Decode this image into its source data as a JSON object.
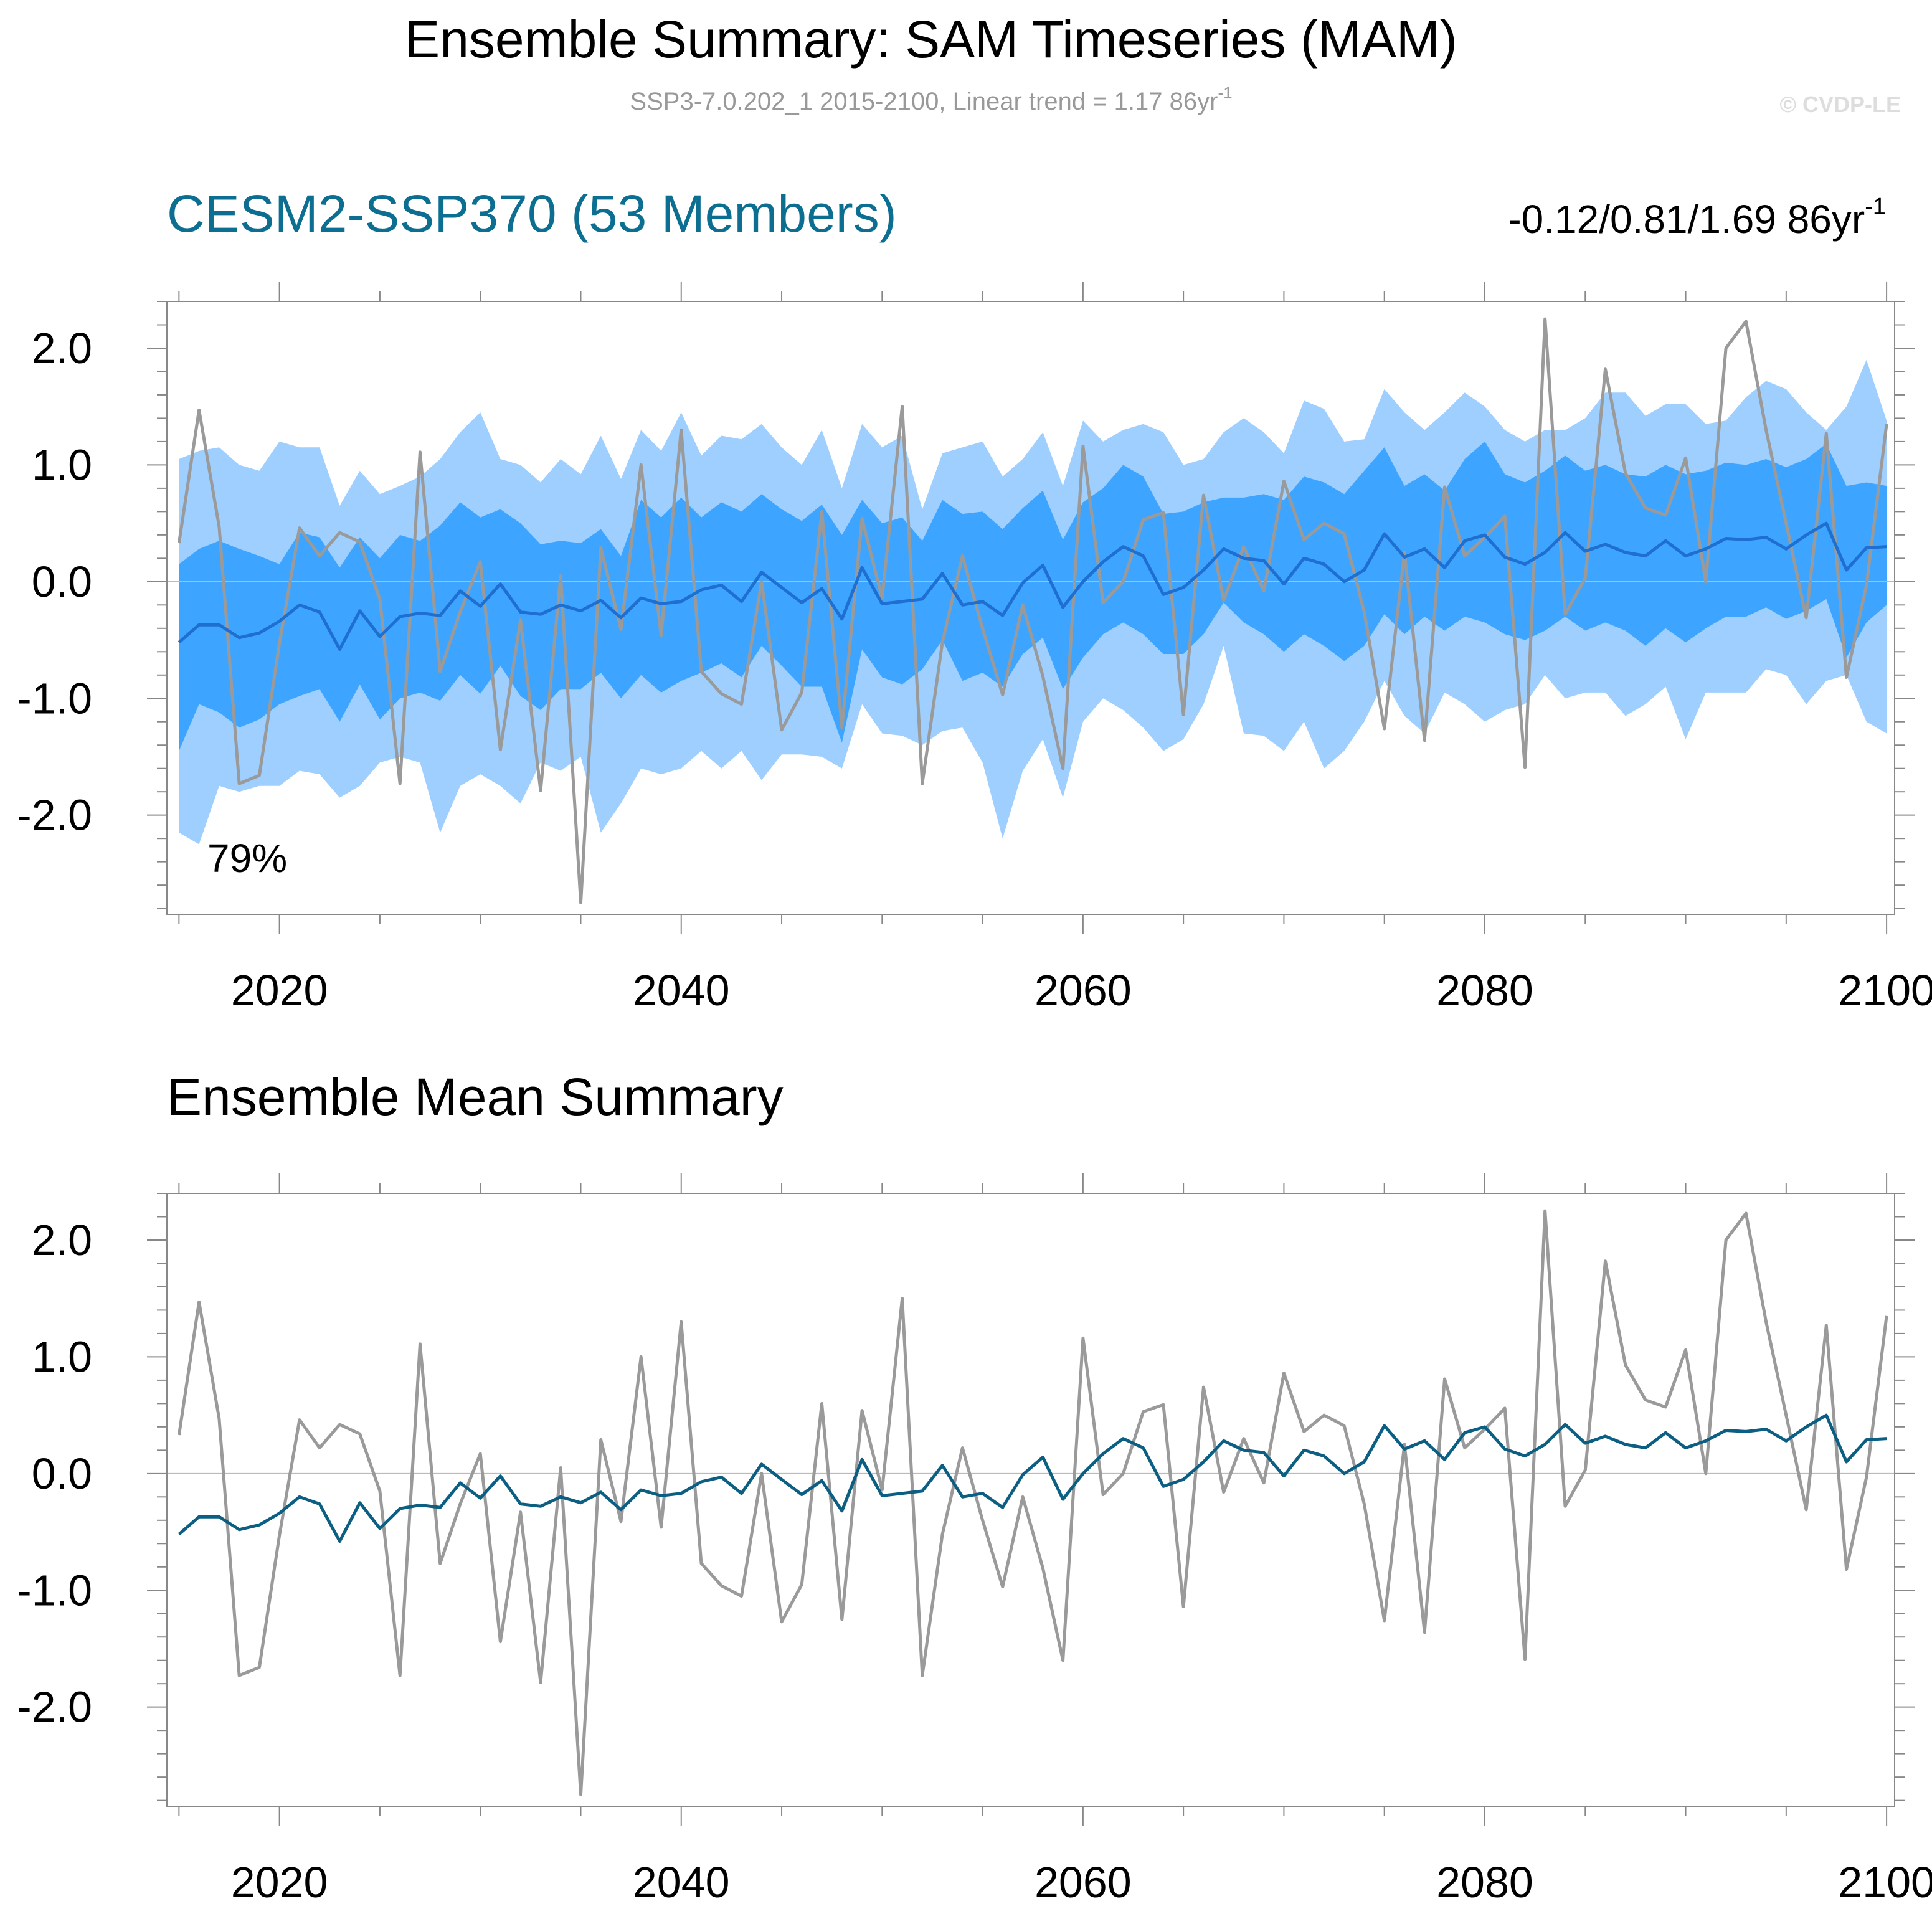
{
  "header": {
    "title": "Ensemble Summary: SAM Timeseries (MAM)",
    "subtitle_main": "SSP3-7.0.202_1 2015-2100, Linear trend = 1.17 86yr",
    "subtitle_sup": "-1",
    "watermark": "© CVDP-LE"
  },
  "panels": [
    {
      "title": "CESM2-SSP370 (53 Members)",
      "trend_text": "-0.12/0.81/1.69 86yr",
      "trend_sup": "-1",
      "annotation": "79%"
    },
    {
      "title": "Ensemble Mean Summary"
    }
  ],
  "colors": {
    "outer_band": "#9ecfff",
    "inner_band": "#3da5ff",
    "panel1_mean": "#1e6fcf",
    "panel2_mean": "#0c5f82",
    "observed": "#9a9a9a",
    "zero_line": "#bbbbbb",
    "title_blue": "#0c6e91",
    "subtitle_gray": "#999999",
    "watermark_gray": "#dddddd"
  },
  "chart_data": [
    {
      "type": "line",
      "x_start": 2015,
      "x_end": 2100,
      "xlim": [
        2014.4,
        2100.4
      ],
      "ylim": [
        -2.85,
        2.4
      ],
      "xticks": [
        "2020",
        "2040",
        "2060",
        "2080",
        "2100"
      ],
      "yticks": [
        "2.0",
        "1.0",
        "0.0",
        "-1.0",
        "-2.0"
      ],
      "series": [
        {
          "role": "observed",
          "values": [
            0.33,
            1.47,
            0.47,
            -1.73,
            -1.66,
            -0.53,
            0.46,
            0.22,
            0.42,
            0.34,
            -0.15,
            -1.73,
            1.11,
            -0.77,
            -0.26,
            0.17,
            -1.44,
            -0.33,
            -1.79,
            0.05,
            -2.75,
            0.29,
            -0.41,
            1.0,
            -0.46,
            1.3,
            -0.77,
            -0.96,
            -1.05,
            0.0,
            -1.27,
            -0.95,
            0.6,
            -1.25,
            0.54,
            -0.14,
            1.5,
            -1.73,
            -0.52,
            0.22,
            -0.4,
            -0.97,
            -0.2,
            -0.81,
            -1.6,
            1.16,
            -0.18,
            0.0,
            0.53,
            0.59,
            -1.14,
            0.74,
            -0.16,
            0.3,
            -0.08,
            0.86,
            0.36,
            0.5,
            0.41,
            -0.26,
            -1.26,
            0.25,
            -1.36,
            0.81,
            0.22,
            0.38,
            0.56,
            -1.59,
            2.25,
            -0.28,
            0.03,
            1.82,
            0.93,
            0.63,
            0.57,
            1.06,
            0.0,
            2.0,
            2.23,
            1.3,
            0.5,
            -0.31,
            1.27,
            -0.82,
            -0.03,
            1.35
          ]
        },
        {
          "role": "ensemble-mean",
          "values": [
            -0.52,
            -0.37,
            -0.37,
            -0.48,
            -0.44,
            -0.34,
            -0.2,
            -0.26,
            -0.58,
            -0.25,
            -0.47,
            -0.3,
            -0.27,
            -0.29,
            -0.08,
            -0.21,
            -0.02,
            -0.26,
            -0.28,
            -0.2,
            -0.25,
            -0.16,
            -0.31,
            -0.14,
            -0.19,
            -0.17,
            -0.07,
            -0.03,
            -0.17,
            0.08,
            -0.05,
            -0.18,
            -0.06,
            -0.32,
            0.12,
            -0.19,
            -0.17,
            -0.15,
            0.07,
            -0.2,
            -0.17,
            -0.29,
            -0.01,
            0.14,
            -0.22,
            0.0,
            0.17,
            0.3,
            0.22,
            -0.11,
            -0.05,
            0.1,
            0.28,
            0.2,
            0.18,
            -0.02,
            0.2,
            0.15,
            0.0,
            0.1,
            0.41,
            0.21,
            0.28,
            0.12,
            0.35,
            0.4,
            0.21,
            0.15,
            0.25,
            0.42,
            0.26,
            0.32,
            0.25,
            0.22,
            0.35,
            0.22,
            0.28,
            0.37,
            0.36,
            0.38,
            0.28,
            0.4,
            0.5,
            0.1,
            0.29,
            0.3
          ]
        },
        {
          "role": "inner-band-upper",
          "values": [
            0.15,
            0.28,
            0.35,
            0.28,
            0.22,
            0.15,
            0.42,
            0.38,
            0.12,
            0.38,
            0.2,
            0.4,
            0.35,
            0.48,
            0.68,
            0.55,
            0.62,
            0.5,
            0.32,
            0.35,
            0.33,
            0.45,
            0.22,
            0.7,
            0.55,
            0.72,
            0.55,
            0.68,
            0.6,
            0.75,
            0.62,
            0.52,
            0.66,
            0.4,
            0.7,
            0.5,
            0.55,
            0.35,
            0.7,
            0.58,
            0.6,
            0.45,
            0.63,
            0.78,
            0.36,
            0.68,
            0.8,
            1.0,
            0.9,
            0.58,
            0.6,
            0.68,
            0.72,
            0.72,
            0.75,
            0.7,
            0.9,
            0.85,
            0.75,
            0.95,
            1.15,
            0.82,
            0.92,
            0.78,
            1.05,
            1.2,
            0.92,
            0.85,
            0.95,
            1.08,
            0.95,
            1.0,
            0.92,
            0.9,
            1.0,
            0.92,
            0.95,
            1.02,
            1.0,
            1.05,
            0.98,
            1.05,
            1.18,
            0.82,
            0.85,
            0.82
          ]
        },
        {
          "role": "inner-band-lower",
          "values": [
            -1.45,
            -1.05,
            -1.12,
            -1.25,
            -1.18,
            -1.05,
            -0.98,
            -0.92,
            -1.2,
            -0.88,
            -1.18,
            -1.0,
            -0.95,
            -1.02,
            -0.8,
            -0.96,
            -0.72,
            -0.98,
            -1.1,
            -0.92,
            -0.92,
            -0.78,
            -1.0,
            -0.8,
            -0.95,
            -0.85,
            -0.78,
            -0.7,
            -0.82,
            -0.55,
            -0.72,
            -0.9,
            -0.9,
            -1.38,
            -0.58,
            -0.82,
            -0.88,
            -0.75,
            -0.5,
            -0.85,
            -0.78,
            -0.9,
            -0.62,
            -0.48,
            -0.92,
            -0.65,
            -0.45,
            -0.35,
            -0.45,
            -0.62,
            -0.62,
            -0.45,
            -0.18,
            -0.35,
            -0.45,
            -0.6,
            -0.45,
            -0.55,
            -0.68,
            -0.55,
            -0.28,
            -0.45,
            -0.3,
            -0.42,
            -0.3,
            -0.35,
            -0.45,
            -0.5,
            -0.42,
            -0.3,
            -0.42,
            -0.35,
            -0.42,
            -0.55,
            -0.4,
            -0.52,
            -0.4,
            -0.3,
            -0.3,
            -0.22,
            -0.32,
            -0.25,
            -0.15,
            -0.65,
            -0.35,
            -0.2
          ]
        },
        {
          "role": "outer-band-upper",
          "values": [
            1.05,
            1.12,
            1.15,
            1.0,
            0.95,
            1.2,
            1.15,
            1.15,
            0.65,
            0.95,
            0.75,
            0.82,
            0.9,
            1.05,
            1.28,
            1.45,
            1.05,
            1.0,
            0.85,
            1.05,
            0.92,
            1.25,
            0.88,
            1.3,
            1.12,
            1.45,
            1.08,
            1.25,
            1.22,
            1.35,
            1.15,
            1.0,
            1.3,
            0.8,
            1.35,
            1.15,
            1.25,
            0.62,
            1.1,
            1.15,
            1.2,
            0.9,
            1.05,
            1.28,
            0.82,
            1.38,
            1.2,
            1.3,
            1.35,
            1.28,
            1.0,
            1.05,
            1.28,
            1.4,
            1.28,
            1.1,
            1.55,
            1.48,
            1.2,
            1.22,
            1.65,
            1.45,
            1.3,
            1.45,
            1.62,
            1.5,
            1.3,
            1.2,
            1.3,
            1.3,
            1.4,
            1.62,
            1.62,
            1.42,
            1.52,
            1.52,
            1.35,
            1.38,
            1.58,
            1.72,
            1.65,
            1.45,
            1.3,
            1.5,
            1.9,
            1.38
          ]
        },
        {
          "role": "outer-band-lower",
          "values": [
            -2.15,
            -2.25,
            -1.75,
            -1.8,
            -1.75,
            -1.75,
            -1.62,
            -1.65,
            -1.85,
            -1.75,
            -1.55,
            -1.5,
            -1.55,
            -2.15,
            -1.75,
            -1.65,
            -1.75,
            -1.9,
            -1.55,
            -1.62,
            -1.5,
            -2.15,
            -1.9,
            -1.6,
            -1.65,
            -1.6,
            -1.45,
            -1.6,
            -1.45,
            -1.7,
            -1.48,
            -1.48,
            -1.5,
            -1.6,
            -1.05,
            -1.3,
            -1.32,
            -1.4,
            -1.28,
            -1.25,
            -1.55,
            -2.2,
            -1.62,
            -1.35,
            -1.85,
            -1.2,
            -1.0,
            -1.1,
            -1.25,
            -1.45,
            -1.35,
            -1.05,
            -0.55,
            -1.3,
            -1.32,
            -1.45,
            -1.2,
            -1.6,
            -1.45,
            -1.2,
            -0.85,
            -1.15,
            -1.3,
            -0.95,
            -1.05,
            -1.2,
            -1.1,
            -1.05,
            -0.8,
            -1.0,
            -0.95,
            -0.95,
            -1.15,
            -1.05,
            -0.9,
            -1.35,
            -0.95,
            -0.95,
            -0.95,
            -0.75,
            -0.8,
            -1.05,
            -0.85,
            -0.8,
            -1.2,
            -1.3
          ]
        }
      ]
    },
    {
      "type": "line",
      "x_start": 2015,
      "x_end": 2100,
      "xlim": [
        2014.4,
        2100.4
      ],
      "ylim": [
        -2.85,
        2.4
      ],
      "xticks": [
        "2020",
        "2040",
        "2060",
        "2080",
        "2100"
      ],
      "yticks": [
        "2.0",
        "1.0",
        "0.0",
        "-1.0",
        "-2.0"
      ],
      "series": [
        {
          "role": "observed",
          "values": [
            0.33,
            1.47,
            0.47,
            -1.73,
            -1.66,
            -0.53,
            0.46,
            0.22,
            0.42,
            0.34,
            -0.15,
            -1.73,
            1.11,
            -0.77,
            -0.26,
            0.17,
            -1.44,
            -0.33,
            -1.79,
            0.05,
            -2.75,
            0.29,
            -0.41,
            1.0,
            -0.46,
            1.3,
            -0.77,
            -0.96,
            -1.05,
            0.0,
            -1.27,
            -0.95,
            0.6,
            -1.25,
            0.54,
            -0.14,
            1.5,
            -1.73,
            -0.52,
            0.22,
            -0.4,
            -0.97,
            -0.2,
            -0.81,
            -1.6,
            1.16,
            -0.18,
            0.0,
            0.53,
            0.59,
            -1.14,
            0.74,
            -0.16,
            0.3,
            -0.08,
            0.86,
            0.36,
            0.5,
            0.41,
            -0.26,
            -1.26,
            0.25,
            -1.36,
            0.81,
            0.22,
            0.38,
            0.56,
            -1.59,
            2.25,
            -0.28,
            0.03,
            1.82,
            0.93,
            0.63,
            0.57,
            1.06,
            0.0,
            2.0,
            2.23,
            1.3,
            0.5,
            -0.31,
            1.27,
            -0.82,
            -0.03,
            1.35
          ]
        },
        {
          "role": "ensemble-mean",
          "values": [
            -0.52,
            -0.37,
            -0.37,
            -0.48,
            -0.44,
            -0.34,
            -0.2,
            -0.26,
            -0.58,
            -0.25,
            -0.47,
            -0.3,
            -0.27,
            -0.29,
            -0.08,
            -0.21,
            -0.02,
            -0.26,
            -0.28,
            -0.2,
            -0.25,
            -0.16,
            -0.31,
            -0.14,
            -0.19,
            -0.17,
            -0.07,
            -0.03,
            -0.17,
            0.08,
            -0.05,
            -0.18,
            -0.06,
            -0.32,
            0.12,
            -0.19,
            -0.17,
            -0.15,
            0.07,
            -0.2,
            -0.17,
            -0.29,
            -0.01,
            0.14,
            -0.22,
            0.0,
            0.17,
            0.3,
            0.22,
            -0.11,
            -0.05,
            0.1,
            0.28,
            0.2,
            0.18,
            -0.02,
            0.2,
            0.15,
            0.0,
            0.1,
            0.41,
            0.21,
            0.28,
            0.12,
            0.35,
            0.4,
            0.21,
            0.15,
            0.25,
            0.42,
            0.26,
            0.32,
            0.25,
            0.22,
            0.35,
            0.22,
            0.28,
            0.37,
            0.36,
            0.38,
            0.28,
            0.4,
            0.5,
            0.1,
            0.29,
            0.3
          ]
        }
      ]
    }
  ]
}
